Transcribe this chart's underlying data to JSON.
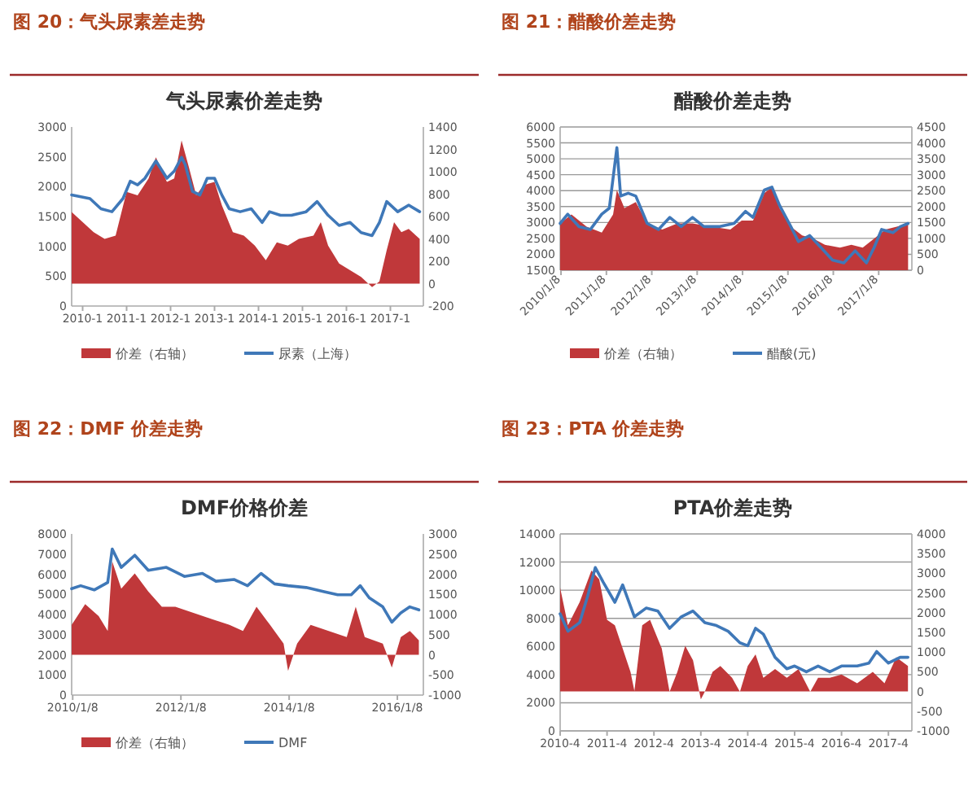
{
  "chart_data": [
    {
      "type": "line",
      "title": "图 20：气头尿素差走势",
      "subtitle": "气头尿素价差走势",
      "legend": "bottom",
      "xlim": [
        "2009-10",
        "2017-10"
      ],
      "xticks": [
        {
          "value": "2010-01",
          "label": "2010-1"
        },
        {
          "value": "2011-01",
          "label": "2011-1"
        },
        {
          "value": "2012-01",
          "label": "2012-1"
        },
        {
          "value": "2013-01",
          "label": "2013-1"
        },
        {
          "value": "2014-01",
          "label": "2014-1"
        },
        {
          "value": "2015-01",
          "label": "2015-1"
        },
        {
          "value": "2016-01",
          "label": "2016-1"
        },
        {
          "value": "2017-01",
          "label": "2017-1"
        }
      ],
      "ylim": [
        0,
        3000
      ],
      "yticks": [
        0,
        500,
        1000,
        1500,
        2000,
        2500,
        3000
      ],
      "y2lim": [
        -200,
        1400
      ],
      "y2ticks": [
        -200,
        0,
        200,
        400,
        600,
        800,
        1000,
        1200,
        1400
      ],
      "series": [
        {
          "name": "价差（右轴）",
          "type": "area",
          "axis": "y2",
          "color": "#c0383a",
          "x": [
            "2009-10",
            "2010-04",
            "2010-07",
            "2010-10",
            "2011-01",
            "2011-04",
            "2011-07",
            "2011-09",
            "2011-12",
            "2012-02",
            "2012-04",
            "2012-06",
            "2012-08",
            "2012-10",
            "2013-01",
            "2013-03",
            "2013-06",
            "2013-09",
            "2013-12",
            "2014-03",
            "2014-06",
            "2014-09",
            "2014-12",
            "2015-04",
            "2015-06",
            "2015-08",
            "2015-11",
            "2016-02",
            "2016-05",
            "2016-08",
            "2016-10",
            "2016-12",
            "2017-02",
            "2017-04",
            "2017-06",
            "2017-09"
          ],
          "values": [
            640,
            460,
            400,
            430,
            820,
            790,
            940,
            1130,
            910,
            940,
            1280,
            1040,
            790,
            880,
            910,
            700,
            460,
            430,
            340,
            210,
            370,
            340,
            400,
            430,
            550,
            340,
            180,
            120,
            60,
            -30,
            20,
            300,
            550,
            460,
            490,
            400
          ]
        },
        {
          "name": "尿素（上海）",
          "axis": "y",
          "color": "#3f78b8",
          "x": [
            "2009-10",
            "2010-03",
            "2010-06",
            "2010-09",
            "2010-12",
            "2011-02",
            "2011-04",
            "2011-06",
            "2011-09",
            "2011-12",
            "2012-02",
            "2012-04",
            "2012-05",
            "2012-07",
            "2012-09",
            "2012-11",
            "2013-01",
            "2013-03",
            "2013-05",
            "2013-08",
            "2013-11",
            "2014-02",
            "2014-04",
            "2014-07",
            "2014-10",
            "2015-02",
            "2015-05",
            "2015-08",
            "2015-11",
            "2016-02",
            "2016-05",
            "2016-08",
            "2016-10",
            "2016-12",
            "2017-03",
            "2017-06",
            "2017-09"
          ],
          "values": [
            1860,
            1800,
            1630,
            1580,
            1800,
            2090,
            2030,
            2140,
            2430,
            2140,
            2260,
            2490,
            2370,
            1920,
            1860,
            2140,
            2140,
            1860,
            1630,
            1580,
            1630,
            1400,
            1580,
            1520,
            1520,
            1580,
            1750,
            1520,
            1350,
            1400,
            1230,
            1180,
            1400,
            1750,
            1580,
            1690,
            1580
          ]
        }
      ]
    },
    {
      "type": "line",
      "title": "图 21：醋酸价差走势",
      "subtitle": "醋酸价差走势",
      "legend": "bottom",
      "grid": "y",
      "xlim": [
        "2010-01",
        "2017-10"
      ],
      "xticks": [
        {
          "value": "2010-01-08",
          "label": "2010/1/8"
        },
        {
          "value": "2011-01-08",
          "label": "2011/1/8"
        },
        {
          "value": "2012-01-08",
          "label": "2012/1/8"
        },
        {
          "value": "2013-01-08",
          "label": "2013/1/8"
        },
        {
          "value": "2014-01-08",
          "label": "2014/1/8"
        },
        {
          "value": "2015-01-08",
          "label": "2015/1/8"
        },
        {
          "value": "2016-01-08",
          "label": "2016/1/8"
        },
        {
          "value": "2017-01-08",
          "label": "2017/1/8"
        }
      ],
      "ylim": [
        1500,
        6000
      ],
      "yticks": [
        1500,
        2000,
        2500,
        3000,
        3500,
        4000,
        4500,
        5000,
        5500,
        6000
      ],
      "y2lim": [
        0,
        4500
      ],
      "y2ticks": [
        0,
        500,
        1000,
        1500,
        2000,
        2500,
        3000,
        3500,
        4000,
        4500
      ],
      "series": [
        {
          "name": "价差（右轴）",
          "type": "area",
          "axis": "y2",
          "color": "#c0383a",
          "x": [
            "2010-01",
            "2010-04",
            "2010-08",
            "2010-12",
            "2011-03",
            "2011-04",
            "2011-06",
            "2011-09",
            "2011-12",
            "2012-04",
            "2012-08",
            "2012-12",
            "2013-05",
            "2013-10",
            "2014-01",
            "2014-04",
            "2014-07",
            "2014-09",
            "2014-11",
            "2015-02",
            "2015-05",
            "2015-08",
            "2015-11",
            "2016-03",
            "2016-06",
            "2016-09",
            "2016-12",
            "2017-03",
            "2017-06",
            "2017-09"
          ],
          "values": [
            1470,
            1750,
            1370,
            1180,
            1750,
            2520,
            1950,
            2140,
            1470,
            1280,
            1470,
            1470,
            1370,
            1280,
            1560,
            1560,
            2420,
            2610,
            1950,
            1370,
            1090,
            990,
            800,
            710,
            800,
            710,
            990,
            1280,
            1370,
            1470
          ]
        },
        {
          "name": "醋酸(元)",
          "axis": "y",
          "color": "#3f78b8",
          "x": [
            "2010-01",
            "2010-03",
            "2010-06",
            "2010-09",
            "2010-12",
            "2011-02",
            "2011-04",
            "2011-05",
            "2011-07",
            "2011-09",
            "2011-12",
            "2012-03",
            "2012-06",
            "2012-09",
            "2012-12",
            "2013-03",
            "2013-07",
            "2013-11",
            "2014-02",
            "2014-04",
            "2014-07",
            "2014-09",
            "2014-11",
            "2015-02",
            "2015-04",
            "2015-07",
            "2015-10",
            "2016-01",
            "2016-04",
            "2016-07",
            "2016-10",
            "2016-12",
            "2017-02",
            "2017-05",
            "2017-07",
            "2017-09"
          ],
          "values": [
            2970,
            3260,
            2870,
            2780,
            3260,
            3450,
            5350,
            3830,
            3920,
            3830,
            2970,
            2780,
            3160,
            2870,
            3160,
            2870,
            2870,
            2970,
            3350,
            3160,
            4020,
            4110,
            3540,
            2870,
            2400,
            2590,
            2210,
            1820,
            1730,
            2110,
            1730,
            2210,
            2780,
            2680,
            2870,
            2970
          ]
        }
      ]
    },
    {
      "type": "line",
      "title": "图 22：DMF 价差走势",
      "subtitle": "DMF价格价差",
      "legend": "bottom",
      "xlim": [
        "2010-01",
        "2016-07"
      ],
      "xticks": [
        {
          "value": "2010-01-08",
          "label": "2010/1/8"
        },
        {
          "value": "2012-01-08",
          "label": "2012/1/8"
        },
        {
          "value": "2014-01-08",
          "label": "2014/1/8"
        },
        {
          "value": "2016-01-08",
          "label": "2016/1/8"
        }
      ],
      "ylim": [
        0,
        8000
      ],
      "yticks": [
        0,
        1000,
        2000,
        3000,
        4000,
        5000,
        6000,
        7000,
        8000
      ],
      "y2lim": [
        -1000,
        3000
      ],
      "y2ticks": [
        -1000,
        -500,
        0,
        500,
        1000,
        1500,
        2000,
        2500,
        3000
      ],
      "series": [
        {
          "name": "价差（右轴）",
          "type": "area",
          "axis": "y2",
          "color": "#c0383a",
          "x": [
            "2010-01",
            "2010-04",
            "2010-07",
            "2010-09",
            "2010-10",
            "2010-12",
            "2011-03",
            "2011-06",
            "2011-09",
            "2011-12",
            "2012-04",
            "2012-08",
            "2012-12",
            "2013-03",
            "2013-06",
            "2013-09",
            "2013-12",
            "2014-01",
            "2014-03",
            "2014-06",
            "2014-10",
            "2015-02",
            "2015-04",
            "2015-06",
            "2015-10",
            "2015-12",
            "2016-02",
            "2016-04",
            "2016-06"
          ],
          "values": [
            740,
            1260,
            960,
            590,
            2320,
            1640,
            2020,
            1570,
            1190,
            1190,
            1040,
            890,
            740,
            590,
            1190,
            740,
            280,
            -400,
            280,
            740,
            590,
            440,
            1190,
            440,
            280,
            -320,
            440,
            590,
            360
          ]
        },
        {
          "name": "DMF",
          "axis": "y",
          "color": "#3f78b8",
          "x": [
            "2010-01",
            "2010-03",
            "2010-06",
            "2010-09",
            "2010-10",
            "2010-12",
            "2011-03",
            "2011-06",
            "2011-10",
            "2012-02",
            "2012-06",
            "2012-09",
            "2013-01",
            "2013-04",
            "2013-07",
            "2013-10",
            "2014-01",
            "2014-05",
            "2014-09",
            "2014-12",
            "2015-03",
            "2015-05",
            "2015-07",
            "2015-10",
            "2015-12",
            "2016-02",
            "2016-04",
            "2016-06"
          ],
          "values": [
            5280,
            5430,
            5220,
            5590,
            7250,
            6340,
            6940,
            6190,
            6340,
            5890,
            6040,
            5650,
            5740,
            5430,
            6040,
            5520,
            5430,
            5340,
            5130,
            4980,
            4980,
            5430,
            4830,
            4380,
            3620,
            4080,
            4380,
            4230
          ]
        }
      ]
    },
    {
      "type": "line",
      "title": "图 23：PTA 价差走势",
      "subtitle": "PTA价差走势",
      "grid": "y",
      "xlim": [
        "2010-04",
        "2017-10"
      ],
      "xticks": [
        {
          "value": "2010-04",
          "label": "2010-4"
        },
        {
          "value": "2011-04",
          "label": "2011-4"
        },
        {
          "value": "2012-04",
          "label": "2012-4"
        },
        {
          "value": "2013-04",
          "label": "2013-4"
        },
        {
          "value": "2014-04",
          "label": "2014-4"
        },
        {
          "value": "2015-04",
          "label": "2015-4"
        },
        {
          "value": "2016-04",
          "label": "2016-4"
        },
        {
          "value": "2017-04",
          "label": "2017-4"
        }
      ],
      "ylim": [
        0,
        14000
      ],
      "yticks": [
        0,
        2000,
        4000,
        6000,
        8000,
        10000,
        12000,
        14000
      ],
      "y2lim": [
        -1000,
        4000
      ],
      "y2ticks": [
        -1000,
        -500,
        0,
        500,
        1000,
        1500,
        2000,
        2500,
        3000,
        3500,
        4000
      ],
      "series": [
        {
          "type": "area",
          "axis": "y2",
          "color": "#c0383a",
          "x": [
            "2010-04",
            "2010-06",
            "2010-09",
            "2010-12",
            "2011-02",
            "2011-04",
            "2011-06",
            "2011-08",
            "2011-10",
            "2011-11",
            "2012-01",
            "2012-03",
            "2012-06",
            "2012-08",
            "2012-10",
            "2012-12",
            "2013-02",
            "2013-04",
            "2013-05",
            "2013-07",
            "2013-09",
            "2013-12",
            "2014-02",
            "2014-04",
            "2014-06",
            "2014-08",
            "2014-11",
            "2015-02",
            "2015-05",
            "2015-08",
            "2015-10",
            "2016-01",
            "2016-04",
            "2016-08",
            "2016-12",
            "2017-03",
            "2017-06",
            "2017-09"
          ],
          "values": [
            2630,
            1680,
            2270,
            3070,
            2850,
            1820,
            1680,
            1090,
            500,
            10,
            1680,
            1820,
            1090,
            -10,
            500,
            1160,
            790,
            -200,
            -10,
            500,
            650,
            350,
            -10,
            650,
            940,
            350,
            570,
            350,
            570,
            -10,
            350,
            350,
            430,
            210,
            500,
            210,
            870,
            650
          ]
        },
        {
          "axis": "y",
          "color": "#3f78b8",
          "x": [
            "2010-04",
            "2010-06",
            "2010-09",
            "2010-11",
            "2011-01",
            "2011-03",
            "2011-06",
            "2011-08",
            "2011-11",
            "2012-02",
            "2012-05",
            "2012-08",
            "2012-11",
            "2013-02",
            "2013-05",
            "2013-08",
            "2013-11",
            "2014-02",
            "2014-04",
            "2014-06",
            "2014-08",
            "2014-11",
            "2015-02",
            "2015-04",
            "2015-07",
            "2015-10",
            "2016-01",
            "2016-04",
            "2016-08",
            "2016-11",
            "2017-01",
            "2017-04",
            "2017-07",
            "2017-09"
          ],
          "values": [
            8320,
            7080,
            7700,
            9550,
            11610,
            10580,
            9140,
            10380,
            8110,
            8730,
            8520,
            7290,
            8110,
            8520,
            7700,
            7490,
            7080,
            6260,
            6050,
            7290,
            6880,
            5230,
            4410,
            4610,
            4200,
            4610,
            4200,
            4610,
            4610,
            4820,
            5640,
            4820,
            5230,
            5230
          ]
        }
      ]
    }
  ]
}
